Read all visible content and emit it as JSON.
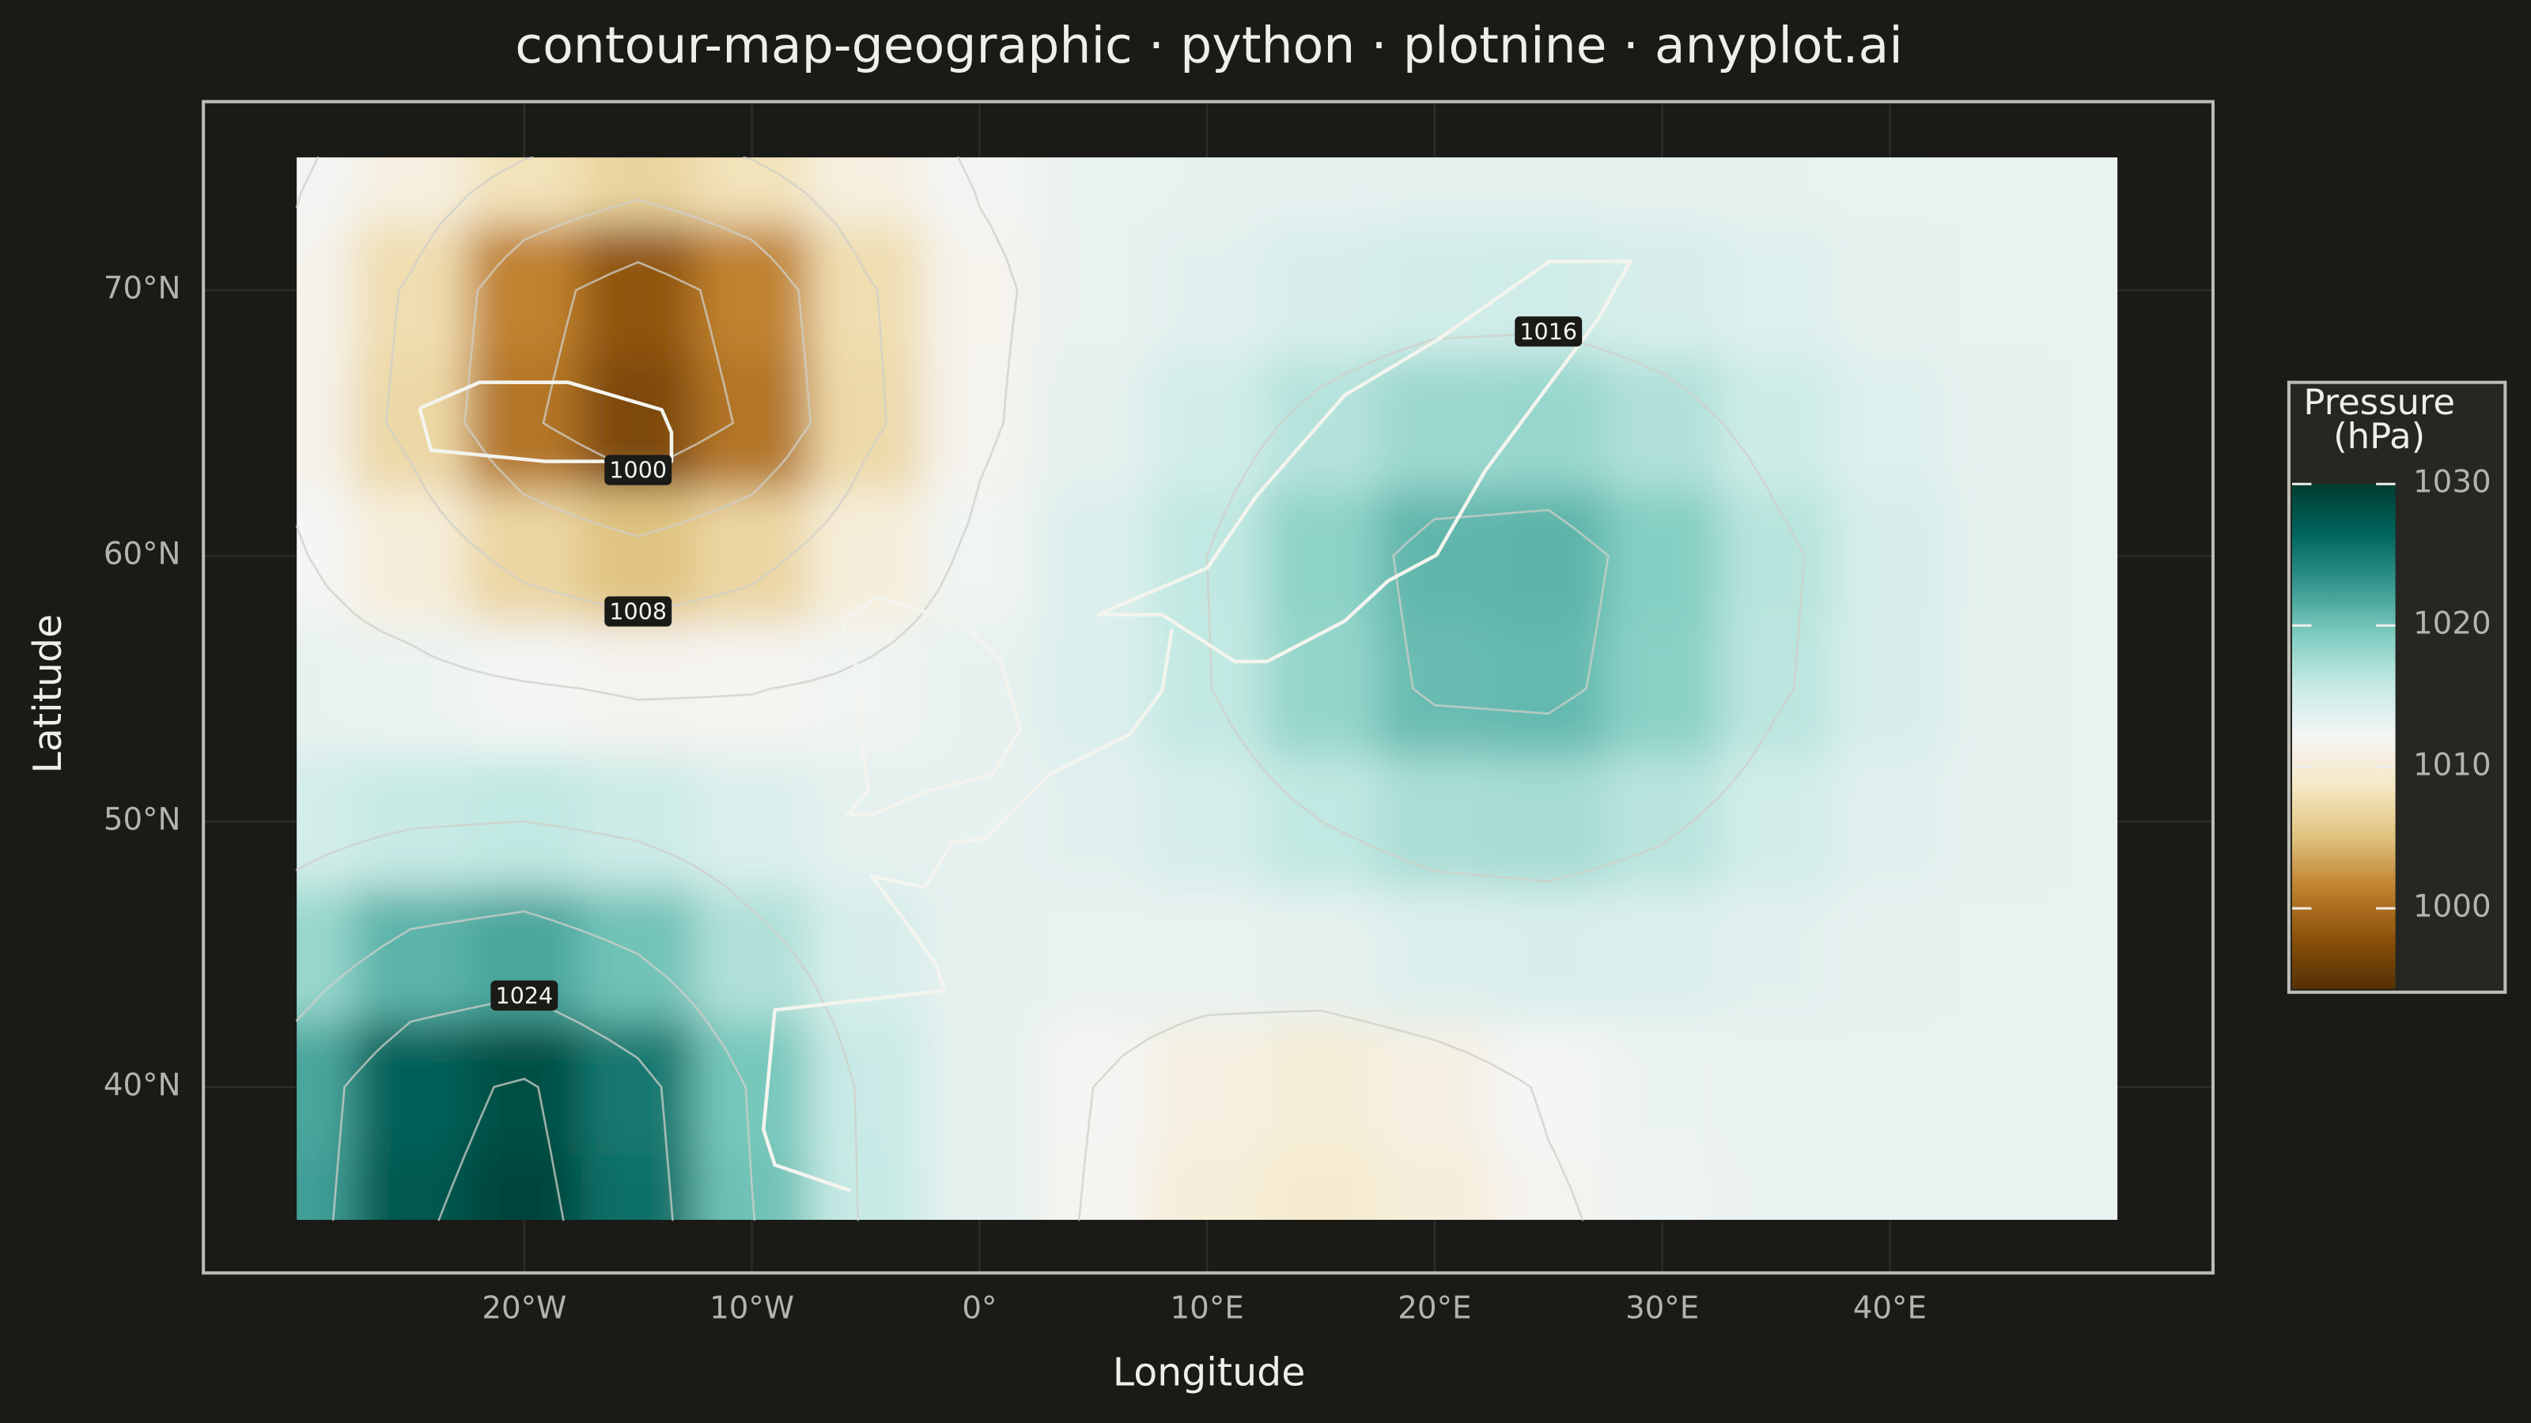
{
  "chart_data": {
    "type": "contour",
    "title": "contour-map-geographic · python · plotnine · anyplot.ai",
    "x_label": "Longitude",
    "y_label": "Latitude",
    "x": [
      -30,
      -25,
      -20,
      -15,
      -10,
      -5,
      0,
      5,
      10,
      15,
      20,
      25,
      30,
      35,
      40,
      45,
      50
    ],
    "y": [
      35,
      40,
      45,
      50,
      55,
      60,
      65,
      70,
      75
    ],
    "z": [
      [
        1022.3,
        1027.6,
        1029.2,
        1025.7,
        1020.1,
        1015.7,
        1013.4,
        1011.8,
        1010.2,
        1009.4,
        1010.3,
        1011.7,
        1012.7,
        1013.0,
        1013.0,
        1013.0,
        1013.0
      ],
      [
        1021.9,
        1026.9,
        1028.4,
        1025.1,
        1019.7,
        1015.6,
        1013.4,
        1012.0,
        1010.7,
        1010.1,
        1010.9,
        1012.2,
        1012.9,
        1013.1,
        1013.1,
        1013.0,
        1013.0
      ],
      [
        1018.1,
        1021.0,
        1021.9,
        1020.0,
        1016.9,
        1014.5,
        1013.4,
        1013.1,
        1013.1,
        1013.4,
        1014.0,
        1014.3,
        1014.1,
        1013.7,
        1013.3,
        1013.1,
        1013.0
      ],
      [
        1014.8,
        1015.7,
        1016.0,
        1015.3,
        1014.2,
        1013.5,
        1013.3,
        1013.7,
        1014.6,
        1016.0,
        1017.2,
        1017.4,
        1016.4,
        1014.9,
        1013.8,
        1013.3,
        1013.1
      ],
      [
        1013.2,
        1012.9,
        1012.3,
        1011.7,
        1011.9,
        1012.5,
        1013.2,
        1014.1,
        1015.9,
        1018.3,
        1020.4,
        1020.6,
        1018.8,
        1016.3,
        1014.4,
        1013.4,
        1013.1
      ],
      [
        1012.2,
        1010.2,
        1006.9,
        1005.2,
        1006.9,
        1010.2,
        1012.5,
        1014.1,
        1016.0,
        1018.6,
        1020.8,
        1021.0,
        1019.1,
        1016.5,
        1014.5,
        1013.5,
        1013.1
      ],
      [
        1011.3,
        1007.1,
        1000.6,
        997.0,
        1000.6,
        1007.2,
        1011.6,
        1013.5,
        1014.9,
        1016.6,
        1017.9,
        1018.1,
        1016.9,
        1015.2,
        1013.9,
        1013.3,
        1013.1
      ],
      [
        1011.5,
        1007.6,
        1001.5,
        998.2,
        1001.5,
        1007.6,
        1011.5,
        1013.0,
        1013.7,
        1014.4,
        1014.9,
        1015.0,
        1014.5,
        1013.9,
        1013.4,
        1013.1,
        1013.0
      ],
      [
        1012.3,
        1010.7,
        1008.1,
        1006.7,
        1008.1,
        1010.7,
        1012.3,
        1013.0,
        1013.2,
        1013.3,
        1013.5,
        1013.5,
        1013.4,
        1013.2,
        1013.1,
        1013.0,
        1013.0
      ]
    ],
    "levels": [
      1000,
      1004,
      1008,
      1012,
      1016,
      1020,
      1024,
      1028
    ],
    "labeled_levels": [
      1000,
      1008,
      1016,
      1024
    ],
    "xlim": [
      -34.1,
      54.2
    ],
    "ylim": [
      33.0,
      77.1
    ],
    "xticks": [
      {
        "value": -20,
        "label": "20°W"
      },
      {
        "value": -10,
        "label": "10°W"
      },
      {
        "value": 0,
        "label": "0°"
      },
      {
        "value": 10,
        "label": "10°E"
      },
      {
        "value": 20,
        "label": "20°E"
      },
      {
        "value": 30,
        "label": "30°E"
      },
      {
        "value": 40,
        "label": "40°E"
      }
    ],
    "yticks": [
      {
        "value": 40,
        "label": "40°N"
      },
      {
        "value": 50,
        "label": "50°N"
      },
      {
        "value": 60,
        "label": "60°N"
      },
      {
        "value": 70,
        "label": "70°N"
      }
    ],
    "grid": true,
    "colorbar": {
      "title": [
        "Pressure",
        "(hPa)"
      ],
      "ticks": [
        1000,
        1010,
        1020,
        1030
      ],
      "lim": [
        994.3,
        1030
      ],
      "colors": [
        "#543005",
        "#8c510a",
        "#bf812d",
        "#dfc27d",
        "#f6e8c3",
        "#f5f5f5",
        "#c7eae5",
        "#80cdc1",
        "#35978f",
        "#01665e",
        "#003c30"
      ]
    }
  }
}
